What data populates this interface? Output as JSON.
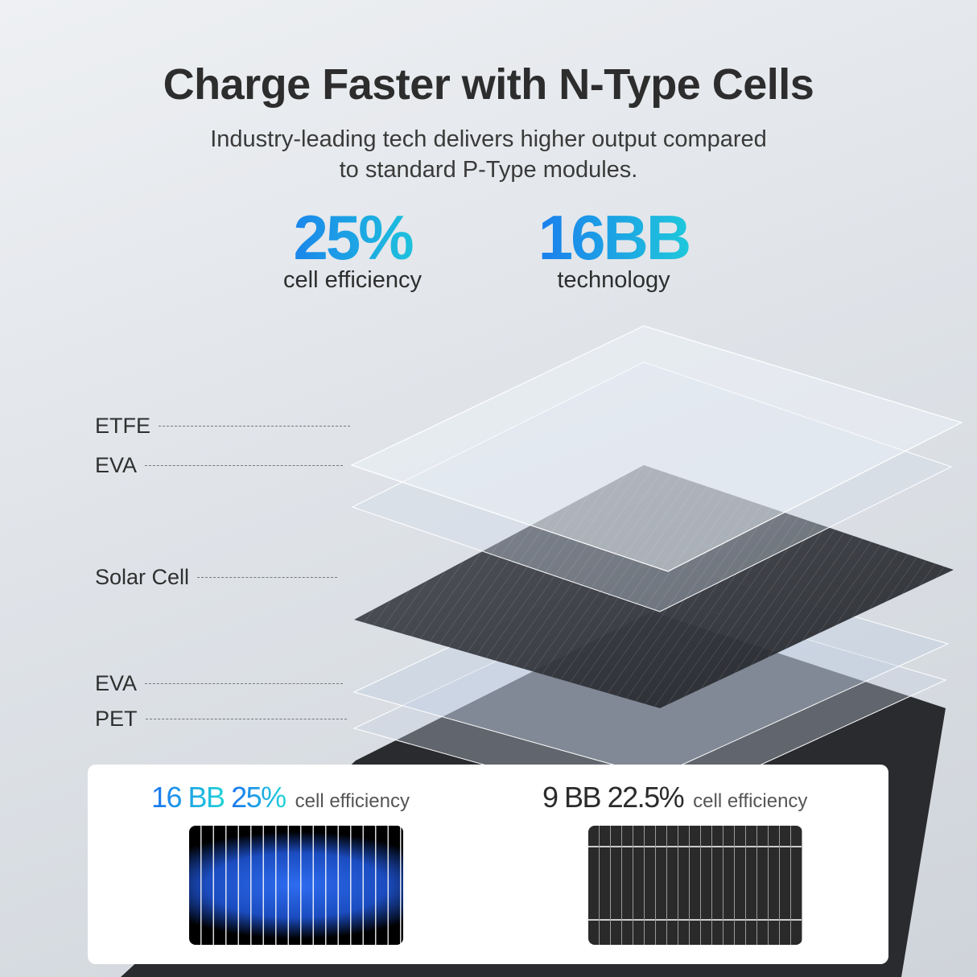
{
  "header": {
    "title": "Charge Faster with N-Type Cells",
    "subtitle_line1": "Industry-leading tech delivers higher output compared",
    "subtitle_line2": "to standard P-Type modules."
  },
  "stats": [
    {
      "value": "25%",
      "label": "cell efficiency"
    },
    {
      "value": "16BB",
      "label": "technology"
    }
  ],
  "layers": [
    "ETFE",
    "EVA",
    "Solar Cell",
    "EVA",
    "PET"
  ],
  "comparison": [
    {
      "bb": "16 BB",
      "efficiency": "25%",
      "label": "cell efficiency"
    },
    {
      "bb": "9 BB",
      "efficiency": "22.5%",
      "label": "cell efficiency"
    }
  ],
  "colors": {
    "accent_start": "#1a73f0",
    "accent_end": "#1fd3d8",
    "text": "#2d2d2d"
  }
}
